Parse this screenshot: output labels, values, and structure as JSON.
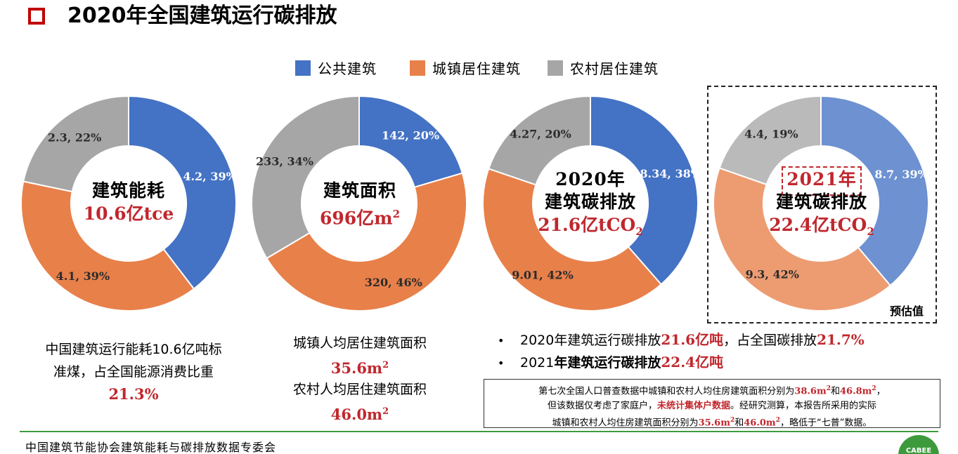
{
  "title": "2020年全国建筑运行碳排放",
  "legend": [
    {
      "label": "公共建筑",
      "color": "#4472c4"
    },
    {
      "label": "城镇居住建筑",
      "color": "#e8804a"
    },
    {
      "label": "农村居住建筑",
      "color": "#a6a6a6"
    }
  ],
  "chart_data": [
    {
      "type": "pie",
      "center_label": "建筑能耗",
      "center_value": "10.6亿tce",
      "slices": [
        {
          "series": "公共建筑",
          "value": 4.2,
          "percent": 39,
          "label": "4.2, 39%"
        },
        {
          "series": "城镇居住建筑",
          "value": 4.1,
          "percent": 39,
          "label": "4.1, 39%"
        },
        {
          "series": "农村居住建筑",
          "value": 2.3,
          "percent": 22,
          "label": "2.3, 22%"
        }
      ]
    },
    {
      "type": "pie",
      "center_label": "建筑面积",
      "center_value": "696亿m",
      "center_value_sup": "2",
      "slices": [
        {
          "series": "公共建筑",
          "value": 142,
          "percent": 20,
          "label": "142, 20%"
        },
        {
          "series": "城镇居住建筑",
          "value": 320,
          "percent": 46,
          "label": "320, 46%"
        },
        {
          "series": "农村居住建筑",
          "value": 233,
          "percent": 34,
          "label": "233, 34%"
        }
      ]
    },
    {
      "type": "pie",
      "center_label_1": "2020年",
      "center_label": "建筑碳排放",
      "center_value": "21.6亿tCO",
      "center_value_sub": "2",
      "slices": [
        {
          "series": "公共建筑",
          "value": 8.34,
          "percent": 38,
          "label": "8.34, 38%"
        },
        {
          "series": "城镇居住建筑",
          "value": 9.01,
          "percent": 42,
          "label": "9.01, 42%"
        },
        {
          "series": "农村居住建筑",
          "value": 4.27,
          "percent": 20,
          "label": "4.27, 20%"
        }
      ]
    },
    {
      "type": "pie",
      "center_label_1": "2021年",
      "center_label": "建筑碳排放",
      "center_value": "22.4亿tCO",
      "center_value_sub": "2",
      "note": "预估值",
      "slices": [
        {
          "series": "公共建筑",
          "value": 8.7,
          "percent": 39,
          "label": "8.7, 39%"
        },
        {
          "series": "城镇居住建筑",
          "value": 9.3,
          "percent": 42,
          "label": "9.3, 42%"
        },
        {
          "series": "农村居住建筑",
          "value": 4.4,
          "percent": 19,
          "label": "4.4, 19%"
        }
      ]
    }
  ],
  "desc1": {
    "line1": "中国建筑运行能耗10.6亿吨标",
    "line2": "准煤，占全国能源消费比重",
    "value": "21.3%"
  },
  "desc2": {
    "label1": "城镇人均居住建筑面积",
    "value1": "35.6m",
    "value1_sup": "2",
    "label2": "农村人均居住建筑面积",
    "value2": "46.0m",
    "value2_sup": "2"
  },
  "bullets": [
    {
      "pre": "2020年建筑运行碳排放",
      "val1": "21.6亿吨",
      "mid": "，占全国碳排放",
      "val2": "21.7%"
    },
    {
      "pre": "2021",
      "bold": "年建筑运行碳排放",
      "val1": "22.4亿吨"
    }
  ],
  "note": {
    "l1a": "第七次全国人口普查数据中城镇和农村人均住房建筑面积分别为",
    "l1b": "38.6m",
    "l1c": "2",
    "l1d": "和",
    "l1e": "46.8m",
    "l1f": "2",
    "l1g": "，",
    "l2a": "但该数据仅考虑了家庭户，",
    "l2b": "未统计集体户数据",
    "l2c": "。经研究测算，本报告所采用的实际",
    "l3a": "城镇和农村人均住房建筑面积分别为",
    "l3b": "35.6m",
    "l3c": "2",
    "l3d": "和",
    "l3e": "46.0m",
    "l3f": "2",
    "l3g": "，略低于“七普”数据。"
  },
  "footer": "中国建筑节能协会建筑能耗与碳排放数据专委会",
  "logo_text": "CABEE"
}
